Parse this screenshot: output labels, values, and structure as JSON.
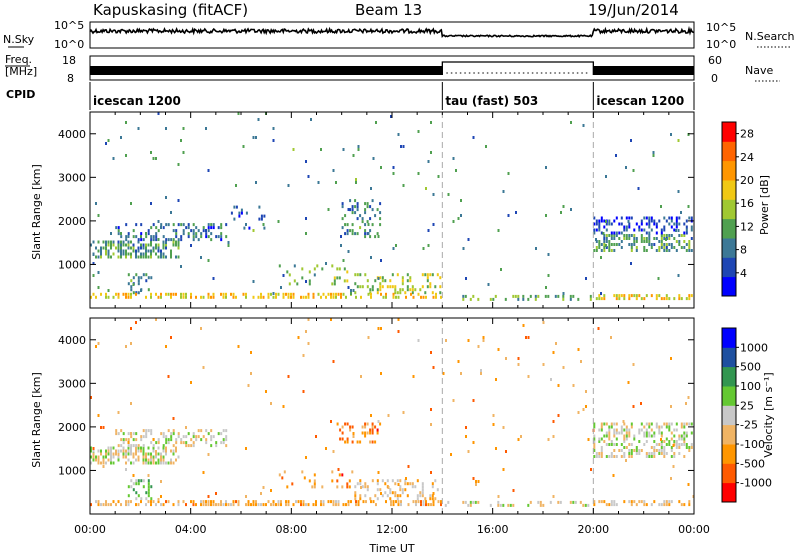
{
  "header": {
    "station": "Kapuskasing (fitACF)",
    "beam": "Beam 13",
    "date": "19/Jun/2014"
  },
  "panels": {
    "nsky_label": "N.Sky",
    "nsky_ticks": [
      "10^5",
      "10^0"
    ],
    "nsearch_label": "N.Search",
    "nsearch_ticks": [
      "10^5",
      "10^0"
    ],
    "freq_label_1": "Freq.",
    "freq_label_2": "[MHz]",
    "freq_ticks": [
      "18",
      "8"
    ],
    "nave_label": "Nave",
    "nave_ticks": [
      "60",
      "0"
    ],
    "cpid_label": "CPID"
  },
  "modes": [
    {
      "name": "icescan 1200",
      "start_hour": 0,
      "end_hour": 14
    },
    {
      "name": "tau (fast) 503",
      "start_hour": 14,
      "end_hour": 20
    },
    {
      "name": "icescan 1200",
      "start_hour": 20,
      "end_hour": 24
    }
  ],
  "chart_data": [
    {
      "type": "heatmap",
      "name": "Power",
      "xlabel": "Time UT",
      "ylabel": "Slant Range [km]",
      "x_ticks": [
        "00:00",
        "04:00",
        "08:00",
        "12:00",
        "16:00",
        "20:00",
        "00:00"
      ],
      "x_range_hours": [
        0,
        24
      ],
      "y_ticks": [
        1000,
        2000,
        3000,
        4000
      ],
      "ylim": [
        0,
        4500
      ],
      "colorbar_label": "Power [dB]",
      "colorbar_ticks": [
        "4",
        "8",
        "12",
        "16",
        "20",
        "24",
        "28"
      ],
      "colorbar_range": [
        0,
        30
      ],
      "colors": [
        "#0000ff",
        "#1e46b4",
        "#3c7896",
        "#50a050",
        "#a0c832",
        "#f0c814",
        "#ff9600",
        "#ff6400",
        "#ff0000"
      ],
      "regions": [
        {
          "t0": 0.0,
          "t1": 3.6,
          "r0": 1150,
          "r1": 1550,
          "density": 0.55,
          "level": 0.35
        },
        {
          "t0": 1.0,
          "t1": 5.5,
          "r0": 1550,
          "r1": 1950,
          "density": 0.35,
          "level": 0.25
        },
        {
          "t0": 5.5,
          "t1": 7.0,
          "r0": 1800,
          "r1": 2350,
          "density": 0.15,
          "level": 0.2
        },
        {
          "t0": 9.8,
          "t1": 11.6,
          "r0": 1600,
          "r1": 2500,
          "density": 0.25,
          "level": 0.3
        },
        {
          "t0": 1.5,
          "t1": 2.5,
          "r0": 350,
          "r1": 800,
          "density": 0.3,
          "level": 0.3
        },
        {
          "t0": 7.5,
          "t1": 10.5,
          "r0": 500,
          "r1": 1000,
          "density": 0.12,
          "level": 0.45
        },
        {
          "t0": 10.5,
          "t1": 14.0,
          "r0": 300,
          "r1": 800,
          "density": 0.3,
          "level": 0.5
        },
        {
          "t0": 0.0,
          "t1": 14.0,
          "r0": 180,
          "r1": 350,
          "density": 0.5,
          "level": 0.6
        },
        {
          "t0": 20.0,
          "t1": 24.0,
          "r0": 1300,
          "r1": 1700,
          "density": 0.5,
          "level": 0.35
        },
        {
          "t0": 20.0,
          "t1": 24.0,
          "r0": 1700,
          "r1": 2100,
          "density": 0.4,
          "level": 0.15
        },
        {
          "t0": 20.0,
          "t1": 24.0,
          "r0": 180,
          "r1": 320,
          "density": 0.5,
          "level": 0.6
        },
        {
          "t0": 14.0,
          "t1": 20.0,
          "r0": 180,
          "r1": 300,
          "density": 0.25,
          "level": 0.4
        },
        {
          "t0": 0.0,
          "t1": 24.0,
          "r0": 300,
          "r1": 4500,
          "density": 0.012,
          "level": 0.3
        }
      ]
    },
    {
      "type": "heatmap",
      "name": "Velocity",
      "xlabel": "Time UT",
      "ylabel": "Slant Range [km]",
      "x_ticks": [
        "00:00",
        "04:00",
        "08:00",
        "12:00",
        "16:00",
        "20:00",
        "00:00"
      ],
      "x_range_hours": [
        0,
        24
      ],
      "y_ticks": [
        1000,
        2000,
        3000,
        4000
      ],
      "ylim": [
        0,
        4500
      ],
      "colorbar_label": "Velocity [m s⁻¹]",
      "colorbar_ticks": [
        "-1000",
        "-500",
        "-100",
        "-25",
        "25",
        "100",
        "500",
        "1000"
      ],
      "colors": [
        "#ff0000",
        "#ff5a00",
        "#ff9600",
        "#f0b464",
        "#c8c8c8",
        "#64c832",
        "#329650",
        "#1e50a0",
        "#0000ff"
      ],
      "regions": [
        {
          "t0": 0.0,
          "t1": 3.6,
          "r0": 1150,
          "r1": 1550,
          "density": 0.55,
          "level": 0.5
        },
        {
          "t0": 1.0,
          "t1": 5.5,
          "r0": 1550,
          "r1": 1950,
          "density": 0.35,
          "level": 0.48
        },
        {
          "t0": 9.8,
          "t1": 11.6,
          "r0": 1600,
          "r1": 2100,
          "density": 0.3,
          "level": 0.25
        },
        {
          "t0": 1.5,
          "t1": 2.5,
          "r0": 350,
          "r1": 800,
          "density": 0.3,
          "level": 0.62
        },
        {
          "t0": 7.5,
          "t1": 10.5,
          "r0": 600,
          "r1": 1000,
          "density": 0.15,
          "level": 0.25
        },
        {
          "t0": 10.5,
          "t1": 14.0,
          "r0": 300,
          "r1": 800,
          "density": 0.3,
          "level": 0.4
        },
        {
          "t0": 0.0,
          "t1": 14.0,
          "r0": 180,
          "r1": 320,
          "density": 0.5,
          "level": 0.35
        },
        {
          "t0": 20.0,
          "t1": 24.0,
          "r0": 1300,
          "r1": 1700,
          "density": 0.5,
          "level": 0.5
        },
        {
          "t0": 20.0,
          "t1": 24.0,
          "r0": 1700,
          "r1": 2100,
          "density": 0.4,
          "level": 0.5
        },
        {
          "t0": 20.0,
          "t1": 24.0,
          "r0": 180,
          "r1": 320,
          "density": 0.5,
          "level": 0.4
        },
        {
          "t0": 14.0,
          "t1": 20.0,
          "r0": 180,
          "r1": 300,
          "density": 0.25,
          "level": 0.45
        },
        {
          "t0": 0.0,
          "t1": 24.0,
          "r0": 300,
          "r1": 4500,
          "density": 0.012,
          "level": 0.3
        }
      ]
    }
  ]
}
